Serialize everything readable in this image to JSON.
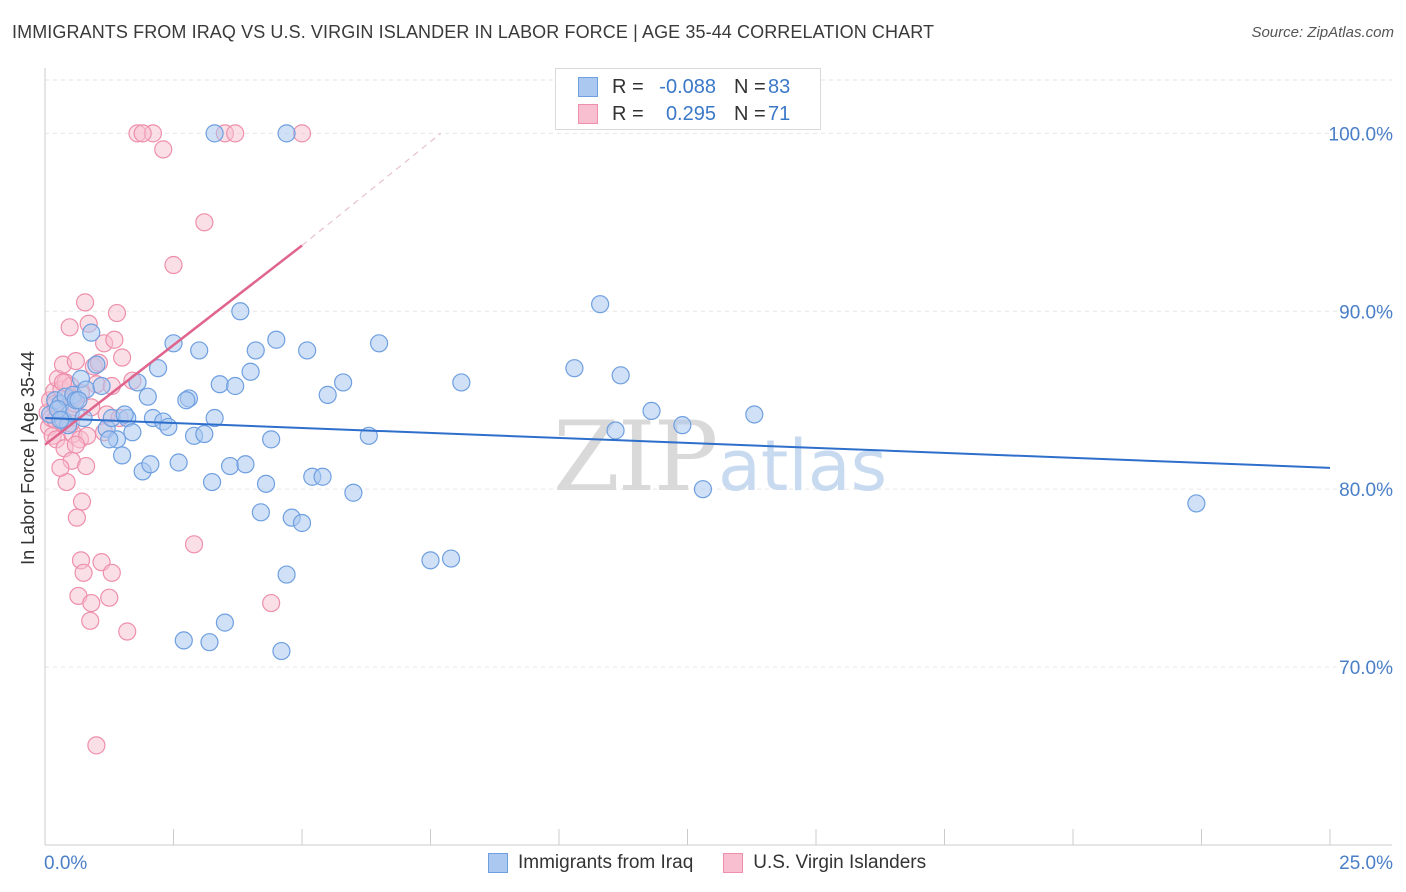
{
  "title": "IMMIGRANTS FROM IRAQ VS U.S. VIRGIN ISLANDER IN LABOR FORCE | AGE 35-44 CORRELATION CHART",
  "source": "Source: ZipAtlas.com",
  "watermark": {
    "zip": "ZIP",
    "atlas": "atlas"
  },
  "legend_top": {
    "rows": [
      {
        "r_label": "R =",
        "r_value": "-0.088",
        "n_label": "N =",
        "n_value": "83"
      },
      {
        "r_label": "R =",
        "r_value": "0.295",
        "n_label": "N =",
        "n_value": "71"
      }
    ]
  },
  "legend_bottom": {
    "series1": "Immigrants from Iraq",
    "series2": "U.S. Virgin Islanders"
  },
  "colors": {
    "series1_fill": "#aac8f0",
    "series1_stroke": "#6f9fe0",
    "series1_line": "#2e6fcc",
    "series2_fill": "#f7bfd0",
    "series2_stroke": "#ee8fab",
    "series2_line": "#e0658e",
    "tick_label": "#4a7fc8",
    "grid": "#e6e6e6"
  },
  "chart_data": {
    "type": "scatter",
    "title": "IMMIGRANTS FROM IRAQ VS U.S. VIRGIN ISLANDER IN LABOR FORCE | AGE 35-44 CORRELATION CHART",
    "xlabel": "",
    "ylabel": "In Labor Force | Age 35-44",
    "xlim": [
      0,
      25
    ],
    "ylim": [
      60,
      103
    ],
    "x_tick_labels": [
      "0.0%",
      "25.0%"
    ],
    "y_ticks": [
      70,
      80,
      90,
      100
    ],
    "y_tick_labels": [
      "70.0%",
      "80.0%",
      "90.0%",
      "100.0%"
    ],
    "grid": true,
    "legend": "top-center",
    "series": [
      {
        "name": "Immigrants from Iraq",
        "trend": {
          "x": [
            0.0,
            25.0
          ],
          "y": [
            84.0,
            81.2
          ]
        },
        "points": [
          [
            0.1,
            84.2
          ],
          [
            0.2,
            85.0
          ],
          [
            0.3,
            84.8
          ],
          [
            0.35,
            83.9
          ],
          [
            0.4,
            85.2
          ],
          [
            0.45,
            83.6
          ],
          [
            0.5,
            84.3
          ],
          [
            0.55,
            85.3
          ],
          [
            0.6,
            85.0
          ],
          [
            0.7,
            86.2
          ],
          [
            0.8,
            85.6
          ],
          [
            0.9,
            88.8
          ],
          [
            1.0,
            87.0
          ],
          [
            1.1,
            85.8
          ],
          [
            1.2,
            83.4
          ],
          [
            1.3,
            84.0
          ],
          [
            1.4,
            82.8
          ],
          [
            1.5,
            81.9
          ],
          [
            1.6,
            84.0
          ],
          [
            1.7,
            83.2
          ],
          [
            1.8,
            86.0
          ],
          [
            1.9,
            81.0
          ],
          [
            2.0,
            85.2
          ],
          [
            2.1,
            84.0
          ],
          [
            2.2,
            86.8
          ],
          [
            2.3,
            83.8
          ],
          [
            2.4,
            83.5
          ],
          [
            2.5,
            88.2
          ],
          [
            2.6,
            81.5
          ],
          [
            2.7,
            71.5
          ],
          [
            2.8,
            85.1
          ],
          [
            2.9,
            83.0
          ],
          [
            3.0,
            87.8
          ],
          [
            3.1,
            83.1
          ],
          [
            3.2,
            71.4
          ],
          [
            3.3,
            84.0
          ],
          [
            3.4,
            85.9
          ],
          [
            3.5,
            72.5
          ],
          [
            3.6,
            81.3
          ],
          [
            3.7,
            85.8
          ],
          [
            3.8,
            90.0
          ],
          [
            3.9,
            81.4
          ],
          [
            4.0,
            86.6
          ],
          [
            4.1,
            87.8
          ],
          [
            4.2,
            78.7
          ],
          [
            4.3,
            80.3
          ],
          [
            4.4,
            82.8
          ],
          [
            4.5,
            88.4
          ],
          [
            4.6,
            70.9
          ],
          [
            4.7,
            75.2
          ],
          [
            4.8,
            78.4
          ],
          [
            5.0,
            78.1
          ],
          [
            5.1,
            87.8
          ],
          [
            5.2,
            80.7
          ],
          [
            5.4,
            80.7
          ],
          [
            5.5,
            85.3
          ],
          [
            5.8,
            86.0
          ],
          [
            6.0,
            79.8
          ],
          [
            6.3,
            83.0
          ],
          [
            6.5,
            88.2
          ],
          [
            3.3,
            100.0
          ],
          [
            4.7,
            100.0
          ],
          [
            7.5,
            76.0
          ],
          [
            7.9,
            76.1
          ],
          [
            8.1,
            86.0
          ],
          [
            10.3,
            86.8
          ],
          [
            10.8,
            90.4
          ],
          [
            11.1,
            83.3
          ],
          [
            11.2,
            86.4
          ],
          [
            11.8,
            84.4
          ],
          [
            12.4,
            83.6
          ],
          [
            12.8,
            80.0
          ],
          [
            13.8,
            84.2
          ],
          [
            22.4,
            79.2
          ],
          [
            0.25,
            84.5
          ],
          [
            0.3,
            83.9
          ],
          [
            0.65,
            85.0
          ],
          [
            0.75,
            84.0
          ],
          [
            1.25,
            82.8
          ],
          [
            1.55,
            84.2
          ],
          [
            2.05,
            81.4
          ],
          [
            2.75,
            85.0
          ],
          [
            3.25,
            80.4
          ]
        ]
      },
      {
        "name": "U.S. Virgin Islanders",
        "trend": {
          "x": [
            0.0,
            5.0
          ],
          "y": [
            82.5,
            93.7
          ]
        },
        "trend_dashed": {
          "x": [
            5.0,
            7.7
          ],
          "y": [
            93.7,
            100.0
          ]
        },
        "points": [
          [
            0.05,
            84.3
          ],
          [
            0.08,
            83.5
          ],
          [
            0.1,
            85.0
          ],
          [
            0.12,
            84.0
          ],
          [
            0.15,
            83.0
          ],
          [
            0.18,
            85.5
          ],
          [
            0.2,
            84.8
          ],
          [
            0.22,
            82.8
          ],
          [
            0.25,
            86.2
          ],
          [
            0.28,
            84.5
          ],
          [
            0.3,
            83.8
          ],
          [
            0.32,
            85.6
          ],
          [
            0.35,
            87.0
          ],
          [
            0.38,
            82.3
          ],
          [
            0.4,
            86.0
          ],
          [
            0.42,
            80.4
          ],
          [
            0.45,
            84.2
          ],
          [
            0.48,
            89.1
          ],
          [
            0.5,
            85.8
          ],
          [
            0.52,
            81.6
          ],
          [
            0.55,
            83.1
          ],
          [
            0.58,
            84.8
          ],
          [
            0.6,
            87.2
          ],
          [
            0.62,
            78.4
          ],
          [
            0.65,
            74.0
          ],
          [
            0.68,
            82.8
          ],
          [
            0.7,
            76.0
          ],
          [
            0.72,
            79.3
          ],
          [
            0.75,
            75.3
          ],
          [
            0.78,
            90.5
          ],
          [
            0.8,
            81.3
          ],
          [
            0.82,
            83.0
          ],
          [
            0.85,
            89.3
          ],
          [
            0.88,
            72.6
          ],
          [
            0.9,
            73.6
          ],
          [
            0.95,
            86.9
          ],
          [
            1.0,
            85.9
          ],
          [
            1.05,
            87.1
          ],
          [
            1.1,
            75.9
          ],
          [
            1.15,
            88.2
          ],
          [
            1.2,
            84.2
          ],
          [
            1.25,
            73.9
          ],
          [
            1.3,
            75.3
          ],
          [
            1.35,
            88.4
          ],
          [
            1.4,
            89.9
          ],
          [
            1.45,
            84.0
          ],
          [
            1.5,
            87.4
          ],
          [
            1.6,
            72.0
          ],
          [
            1.7,
            86.1
          ],
          [
            1.8,
            100.0
          ],
          [
            2.1,
            100.0
          ],
          [
            2.3,
            99.1
          ],
          [
            2.5,
            92.6
          ],
          [
            2.9,
            76.9
          ],
          [
            3.1,
            95.0
          ],
          [
            3.5,
            100.0
          ],
          [
            3.7,
            100.0
          ],
          [
            4.4,
            73.6
          ],
          [
            5.0,
            100.0
          ],
          [
            1.0,
            65.6
          ],
          [
            0.3,
            81.2
          ],
          [
            0.5,
            83.7
          ],
          [
            0.6,
            82.5
          ],
          [
            0.7,
            85.4
          ],
          [
            0.9,
            84.6
          ],
          [
            1.15,
            83.2
          ],
          [
            0.2,
            83.9
          ],
          [
            0.35,
            86.0
          ],
          [
            1.9,
            100.0
          ],
          [
            0.55,
            85.1
          ],
          [
            1.3,
            85.8
          ]
        ]
      }
    ]
  }
}
